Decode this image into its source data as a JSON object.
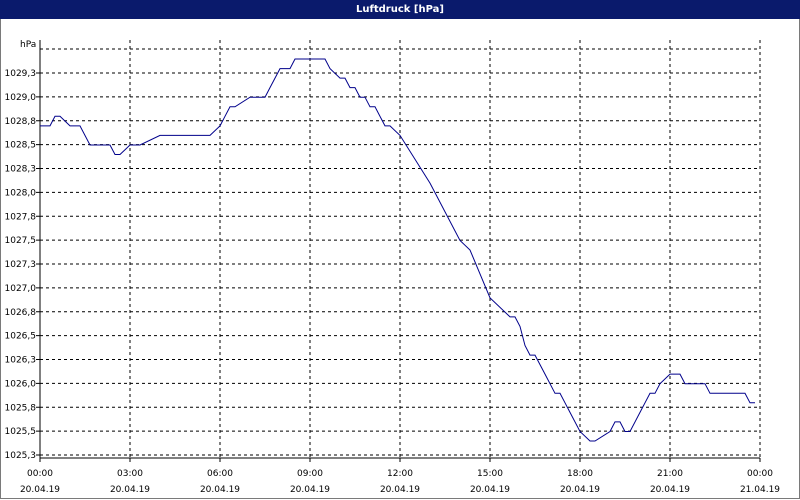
{
  "window": {
    "title": "Luftdruck [hPa]"
  },
  "chart_data": {
    "type": "line",
    "title": "Luftdruck [hPa]",
    "ylabel": "hPa",
    "xlabel": "",
    "ylim": [
      1025.25,
      1029.6
    ],
    "y_ticks": [
      "1025,3",
      "1025,5",
      "1025,8",
      "1026,0",
      "1026,3",
      "1026,5",
      "1026,8",
      "1027,0",
      "1027,3",
      "1027,5",
      "1027,8",
      "1028,0",
      "1028,3",
      "1028,5",
      "1028,8",
      "1029,0",
      "1029,3"
    ],
    "x_ticks": [
      {
        "time": "00:00",
        "date": "20.04.19"
      },
      {
        "time": "03:00",
        "date": "20.04.19"
      },
      {
        "time": "06:00",
        "date": "20.04.19"
      },
      {
        "time": "09:00",
        "date": "20.04.19"
      },
      {
        "time": "12:00",
        "date": "20.04.19"
      },
      {
        "time": "15:00",
        "date": "20.04.19"
      },
      {
        "time": "18:00",
        "date": "20.04.19"
      },
      {
        "time": "21:00",
        "date": "20.04.19"
      },
      {
        "time": "00:00",
        "date": "21.04.19"
      }
    ],
    "grid": true,
    "line_color": "#00008b",
    "series": [
      {
        "x": [
          "20.04.19 00:00",
          "20.04.19 00:20",
          "20.04.19 00:30",
          "20.04.19 00:40",
          "20.04.19 01:00",
          "20.04.19 01:10",
          "20.04.19 01:20",
          "20.04.19 01:40",
          "20.04.19 02:00",
          "20.04.19 02:10",
          "20.04.19 02:20",
          "20.04.19 02:30",
          "20.04.19 02:40",
          "20.04.19 03:00",
          "20.04.19 03:10",
          "20.04.19 03:20",
          "20.04.19 04:00",
          "20.04.19 05:00",
          "20.04.19 05:30",
          "20.04.19 05:40",
          "20.04.19 06:00",
          "20.04.19 06:10",
          "20.04.19 06:20",
          "20.04.19 06:30",
          "20.04.19 07:00",
          "20.04.19 07:10",
          "20.04.19 07:20",
          "20.04.19 07:30",
          "20.04.19 07:40",
          "20.04.19 08:00",
          "20.04.19 08:10",
          "20.04.19 08:20",
          "20.04.19 08:30",
          "20.04.19 09:00",
          "20.04.19 09:20",
          "20.04.19 09:30",
          "20.04.19 09:40",
          "20.04.19 10:00",
          "20.04.19 10:10",
          "20.04.19 10:20",
          "20.04.19 10:30",
          "20.04.19 10:40",
          "20.04.19 10:50",
          "20.04.19 11:00",
          "20.04.19 11:10",
          "20.04.19 11:30",
          "20.04.19 11:40",
          "20.04.19 12:00",
          "20.04.19 13:00",
          "20.04.19 14:00",
          "20.04.19 14:20",
          "20.04.19 15:00",
          "20.04.19 15:40",
          "20.04.19 15:50",
          "20.04.19 16:00",
          "20.04.19 16:10",
          "20.04.19 16:20",
          "20.04.19 16:30",
          "20.04.19 16:40",
          "20.04.19 16:50",
          "20.04.19 17:00",
          "20.04.19 17:10",
          "20.04.19 17:20",
          "20.04.19 17:30",
          "20.04.19 17:40",
          "20.04.19 18:00",
          "20.04.19 18:20",
          "20.04.19 18:30",
          "20.04.19 19:00",
          "20.04.19 19:10",
          "20.04.19 19:20",
          "20.04.19 19:30",
          "20.04.19 19:40",
          "20.04.19 20:00",
          "20.04.19 20:10",
          "20.04.19 20:20",
          "20.04.19 20:30",
          "20.04.19 20:40",
          "20.04.19 21:00",
          "20.04.19 21:20",
          "20.04.19 21:30",
          "20.04.19 22:00",
          "20.04.19 22:10",
          "20.04.19 22:20",
          "20.04.19 22:30",
          "20.04.19 23:30",
          "20.04.19 23:40",
          "20.04.19 23:50"
        ],
        "values": [
          1028.75,
          1028.75,
          1028.85,
          1028.85,
          1028.75,
          1028.75,
          1028.75,
          1028.55,
          1028.55,
          1028.55,
          1028.55,
          1028.45,
          1028.45,
          1028.55,
          1028.55,
          1028.55,
          1028.65,
          1028.65,
          1028.65,
          1028.65,
          1028.75,
          1028.85,
          1028.95,
          1028.95,
          1029.05,
          1029.05,
          1029.05,
          1029.05,
          1029.15,
          1029.35,
          1029.35,
          1029.35,
          1029.45,
          1029.45,
          1029.45,
          1029.45,
          1029.35,
          1029.25,
          1029.25,
          1029.15,
          1029.15,
          1029.05,
          1029.05,
          1028.95,
          1028.95,
          1028.75,
          1028.75,
          1028.65,
          1028.15,
          1027.55,
          1027.45,
          1026.95,
          1026.75,
          1026.75,
          1026.65,
          1026.45,
          1026.35,
          1026.35,
          1026.25,
          1026.15,
          1026.05,
          1025.95,
          1025.95,
          1025.85,
          1025.75,
          1025.55,
          1025.45,
          1025.45,
          1025.55,
          1025.65,
          1025.65,
          1025.55,
          1025.55,
          1025.75,
          1025.85,
          1025.95,
          1025.95,
          1026.05,
          1026.15,
          1026.15,
          1026.05,
          1026.05,
          1026.05,
          1025.95,
          1025.95,
          1025.95,
          1025.85,
          1025.85
        ]
      }
    ]
  }
}
